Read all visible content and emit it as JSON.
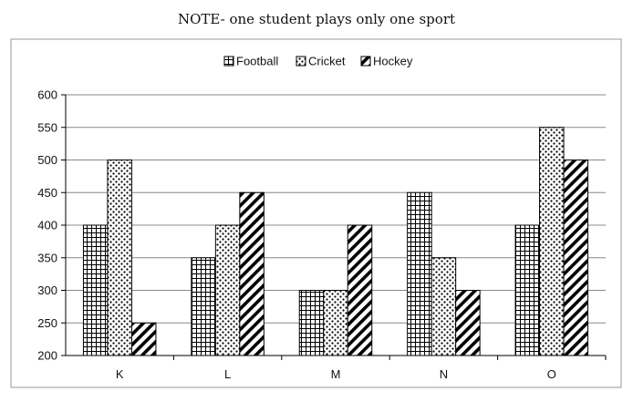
{
  "note": "NOTE- one student plays only one sport",
  "chart_data": {
    "type": "bar",
    "title": "",
    "xlabel": "",
    "ylabel": "",
    "categories": [
      "K",
      "L",
      "M",
      "N",
      "O"
    ],
    "series": [
      {
        "name": "Football",
        "values": [
          400,
          350,
          300,
          450,
          400
        ],
        "pattern": "grid"
      },
      {
        "name": "Cricket",
        "values": [
          500,
          400,
          300,
          350,
          550
        ],
        "pattern": "dots"
      },
      {
        "name": "Hockey",
        "values": [
          250,
          450,
          400,
          300,
          500
        ],
        "pattern": "diagonal"
      }
    ],
    "ylim": [
      200,
      600
    ],
    "yticks": [
      200,
      250,
      300,
      350,
      400,
      450,
      500,
      550,
      600
    ],
    "grid": true,
    "legend_position": "top-center",
    "colors": {
      "bar_fill": "#ffffff",
      "bar_stroke": "#000000",
      "grid": "#888888",
      "frame": "#9a9a9a"
    }
  }
}
